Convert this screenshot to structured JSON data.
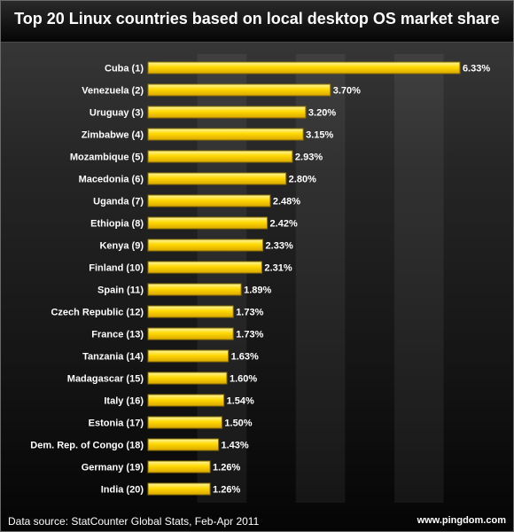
{
  "title": "Top 20 Linux countries based on local desktop OS market share",
  "footer": {
    "source": "Data source: StatCounter Global Stats, Feb-Apr 2011",
    "credit": "www.pingdom.com"
  },
  "colors": {
    "bar_fill": "#f5d000",
    "bar_highlight": "#fff27a",
    "bar_border": "#8a7000",
    "background": "#1e1e1e",
    "text": "#ffffff"
  },
  "chart_data": {
    "type": "bar",
    "orientation": "horizontal",
    "title": "Top 20 Linux countries based on local desktop OS market share",
    "xlabel": "",
    "ylabel": "",
    "xlim": [
      0,
      7
    ],
    "grid": "alternating vertical bands",
    "categories": [
      "Cuba (1)",
      "Venezuela (2)",
      "Uruguay (3)",
      "Zimbabwe (4)",
      "Mozambique (5)",
      "Macedonia (6)",
      "Uganda (7)",
      "Ethiopia (8)",
      "Kenya (9)",
      "Finland (10)",
      "Spain (11)",
      "Czech Republic (12)",
      "France (13)",
      "Tanzania (14)",
      "Madagascar (15)",
      "Italy (16)",
      "Estonia (17)",
      "Dem. Rep. of Congo (18)",
      "Germany (19)",
      "India (20)"
    ],
    "values": [
      6.33,
      3.7,
      3.2,
      3.15,
      2.93,
      2.8,
      2.48,
      2.42,
      2.33,
      2.31,
      1.89,
      1.73,
      1.73,
      1.63,
      1.6,
      1.54,
      1.5,
      1.43,
      1.26,
      1.26
    ],
    "value_labels": [
      "6.33%",
      "3.70%",
      "3.20%",
      "3.15%",
      "2.93%",
      "2.80%",
      "2.48%",
      "2.42%",
      "2.33%",
      "2.31%",
      "1.89%",
      "1.73%",
      "1.73%",
      "1.63%",
      "1.60%",
      "1.54%",
      "1.50%",
      "1.43%",
      "1.26%",
      "1.26%"
    ]
  }
}
